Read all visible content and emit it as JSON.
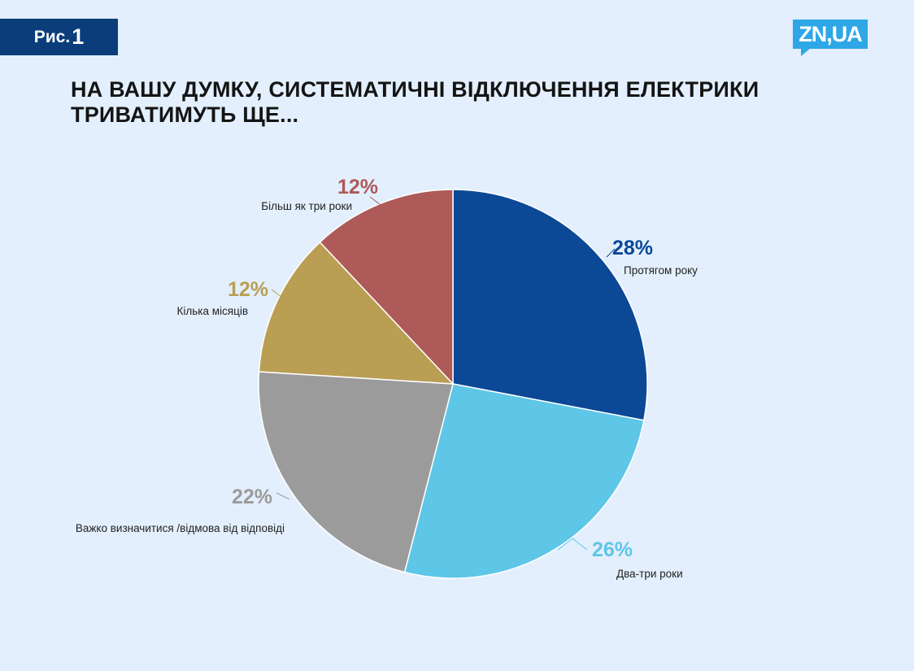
{
  "figure_label": {
    "prefix": "Рис.",
    "number": "1"
  },
  "logo_text": "ZN,UA",
  "chart_data": {
    "type": "pie",
    "title": "НА ВАШУ ДУМКУ, СИСТЕМАТИЧНІ ВІДКЛЮЧЕННЯ ЕЛЕКТРИКИ ТРИВАТИМУТЬ ЩЕ...",
    "slices": [
      {
        "label": "Протягом року",
        "value": 28,
        "value_label": "28%",
        "color": "#0b4896"
      },
      {
        "label": "Два-три роки",
        "value": 26,
        "value_label": "26%",
        "color": "#5ec6e7"
      },
      {
        "label": "Важко визначитися /відмова від відповіді",
        "value": 22,
        "value_label": "22%",
        "color": "#9b9b9b"
      },
      {
        "label": "Кілька місяців",
        "value": 12,
        "value_label": "12%",
        "color": "#b99e54"
      },
      {
        "label": "Більш як три роки",
        "value": 12,
        "value_label": "12%",
        "color": "#ae5a58"
      }
    ]
  }
}
